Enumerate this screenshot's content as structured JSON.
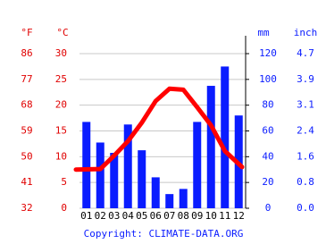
{
  "chart_data": {
    "type": "climate",
    "categories": [
      "01",
      "02",
      "03",
      "04",
      "05",
      "06",
      "07",
      "08",
      "09",
      "10",
      "11",
      "12"
    ],
    "series": [
      {
        "name": "Precipitation",
        "type": "bar",
        "axis": "y2",
        "color": "#0a1cff",
        "values": [
          67,
          51,
          43,
          65,
          45,
          24,
          11,
          15,
          67,
          95,
          110,
          72
        ]
      },
      {
        "name": "Temperature",
        "type": "line",
        "color": "#ff0000",
        "values": [
          7.5,
          7.6,
          10.2,
          13.0,
          16.6,
          20.8,
          23.2,
          23.0,
          19.6,
          16.1,
          11.1,
          8.0
        ]
      }
    ],
    "ylim": [
      0,
      30
    ],
    "yticks": [
      0,
      5,
      10,
      15,
      20,
      25,
      30
    ],
    "y_fahrenheit_ticks": [
      {
        "value": 0,
        "label": "32"
      },
      {
        "value": 5,
        "label": "41"
      },
      {
        "value": 10,
        "label": "50"
      },
      {
        "value": 15,
        "label": "59"
      },
      {
        "value": 20,
        "label": "68"
      },
      {
        "value": 25,
        "label": "77"
      },
      {
        "value": 30,
        "label": "86"
      }
    ],
    "y2lim": [
      0,
      120
    ],
    "y2ticks": [
      0,
      20,
      40,
      60,
      80,
      100,
      120
    ],
    "y2_inch_ticks": [
      {
        "value": 0,
        "label": "0.0"
      },
      {
        "value": 20,
        "label": "0.8"
      },
      {
        "value": 40,
        "label": "1.6"
      },
      {
        "value": 60,
        "label": "2.4"
      },
      {
        "value": 80,
        "label": "3.1"
      },
      {
        "value": 100,
        "label": "3.9"
      },
      {
        "value": 120,
        "label": "4.7"
      }
    ],
    "y_units": [
      "°F",
      "°C"
    ],
    "y2_units": [
      "mm",
      "inch"
    ],
    "copyright": "Copyright: CLIMATE-DATA.ORG",
    "grid": true
  }
}
